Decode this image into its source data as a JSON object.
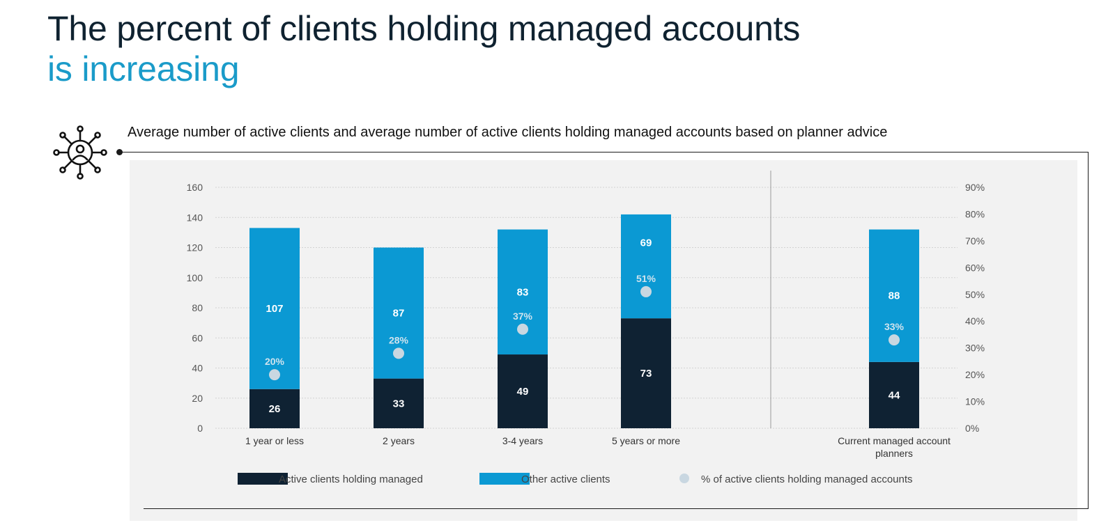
{
  "header": {
    "title_line1": "The percent of clients holding managed accounts",
    "title_line2": "is increasing"
  },
  "subtitle": "Average number of active clients and average number of active clients holding managed accounts based on planner advice",
  "colors": {
    "title_dark": "#0f2230",
    "title_accent": "#1a9bc9",
    "managed": "#0f2233",
    "other": "#0b99d3",
    "pct_dot": "#c9d7e1",
    "panel": "#f2f2f2"
  },
  "icons": {
    "header_icon": "network-people-icon"
  },
  "chart_data": {
    "type": "bar",
    "stacked": true,
    "categories": [
      "1 year or less",
      "2 years",
      "3-4 years",
      "5 years or more",
      "Current managed account planners"
    ],
    "series": [
      {
        "name": "Active clients holding managed",
        "values": [
          26,
          33,
          49,
          73,
          44
        ],
        "color": "#0f2233"
      },
      {
        "name": "Other active clients",
        "values": [
          107,
          87,
          83,
          69,
          88
        ],
        "color": "#0b99d3"
      }
    ],
    "secondary_series": {
      "name": "% of active clients holding managed accounts",
      "type": "scatter",
      "axis": "right",
      "values": [
        20,
        28,
        37,
        51,
        33
      ],
      "labels": [
        "20%",
        "28%",
        "37%",
        "51%",
        "33%"
      ],
      "color": "#c9d7e1"
    },
    "y_left": {
      "min": 0,
      "max": 160,
      "ticks": [
        "0",
        "20",
        "40",
        "60",
        "80",
        "100",
        "120",
        "140",
        "160"
      ]
    },
    "y_right": {
      "min": 0,
      "max": 90,
      "ticks": [
        "0%",
        "10%",
        "20%",
        "30%",
        "40%",
        "50%",
        "60%",
        "70%",
        "80%",
        "90%"
      ]
    },
    "grid": true,
    "separator_before_last_category": true,
    "legend_position": "bottom"
  }
}
